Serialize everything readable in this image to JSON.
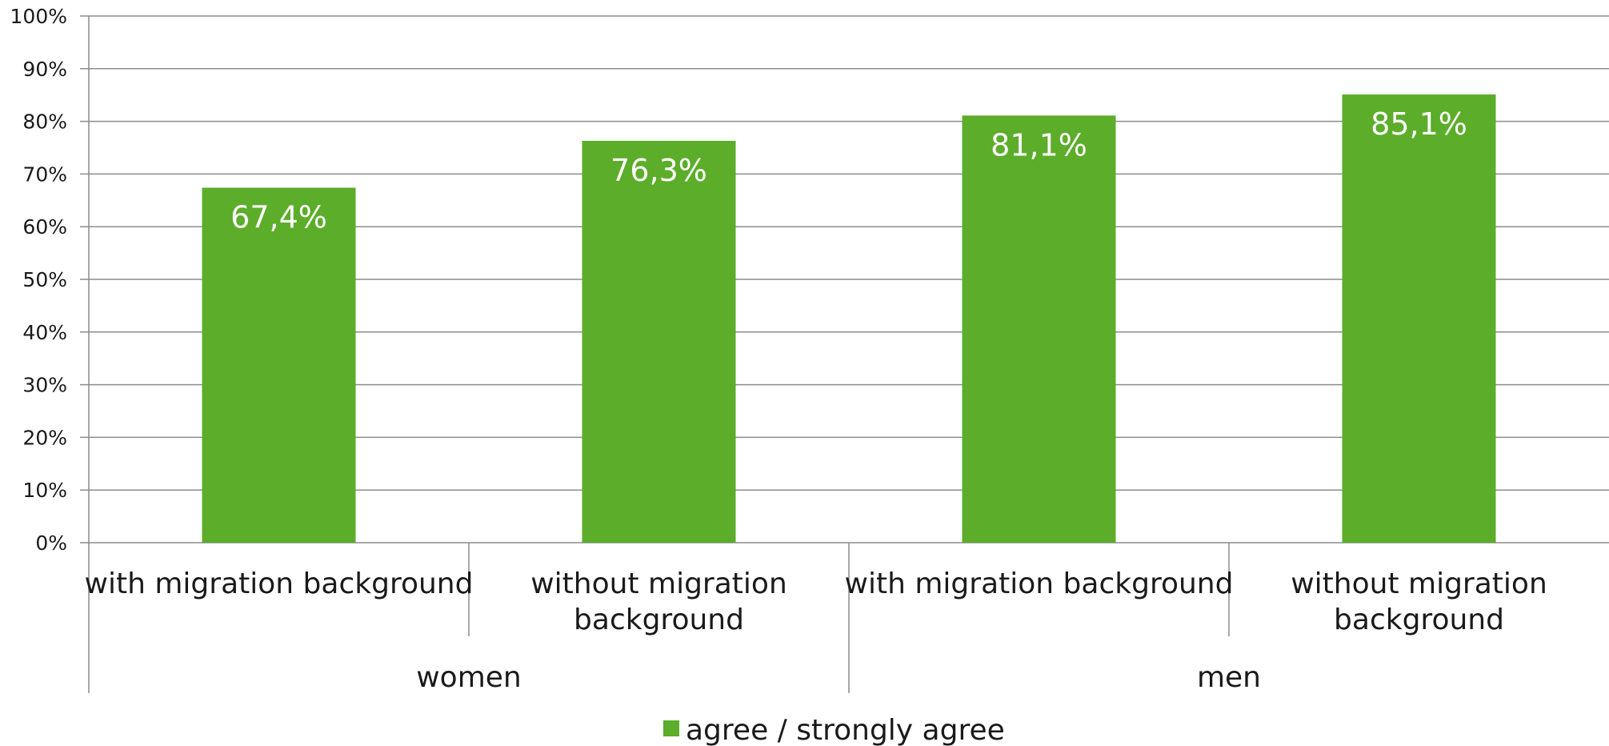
{
  "chart_data": {
    "type": "bar",
    "categories": [
      {
        "lines": [
          "with migration background"
        ],
        "group": "women"
      },
      {
        "lines": [
          "without migration",
          "background"
        ],
        "group": "women"
      },
      {
        "lines": [
          "with migration background"
        ],
        "group": "men"
      },
      {
        "lines": [
          "without migration",
          "background"
        ],
        "group": "men"
      }
    ],
    "groups": [
      "women",
      "men"
    ],
    "series": [
      {
        "name": "agree / strongly agree",
        "values": [
          67.4,
          76.3,
          81.1,
          85.1
        ],
        "labels": [
          "67,4%",
          "76,3%",
          "81,1%",
          "85,1%"
        ],
        "color": "#5cad2a"
      }
    ],
    "ylim": [
      0,
      100
    ],
    "yticks": [
      "0%",
      "10%",
      "20%",
      "30%",
      "40%",
      "50%",
      "60%",
      "70%",
      "80%",
      "90%",
      "100%"
    ],
    "grid": true,
    "legend_position": "bottom"
  }
}
